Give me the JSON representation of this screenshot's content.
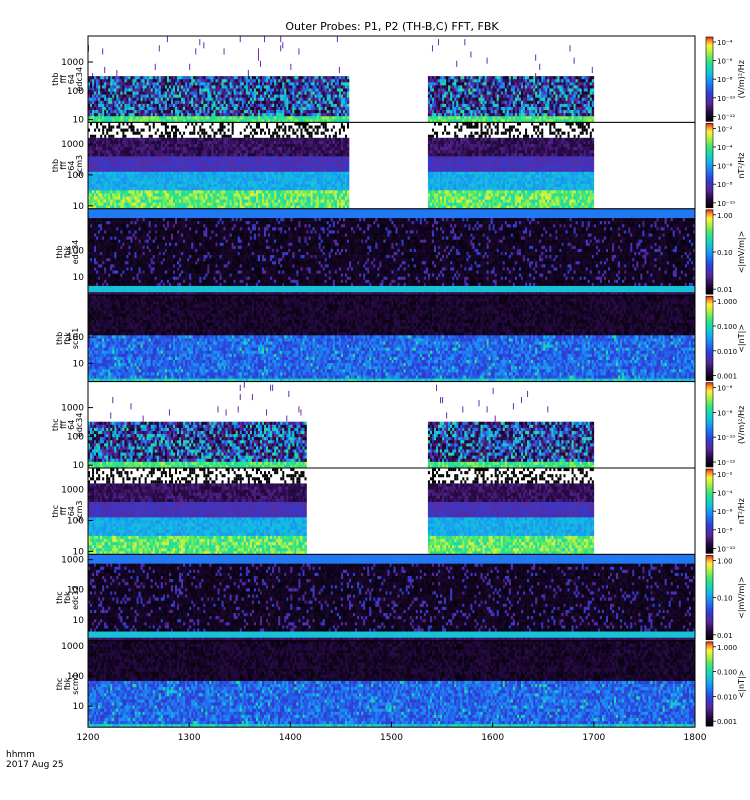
{
  "chart_data": {
    "type": "heatmap",
    "title": "Outer Probes: P1, P2 (TH-B,C) FFT, FBK",
    "footer": {
      "time_label": "hhmm",
      "date_label": "2017 Aug 25"
    },
    "x_axis": {
      "range": [
        1200,
        1800
      ],
      "ticks": [
        "1200",
        "1300",
        "1400",
        "1500",
        "1600",
        "1700",
        "1800"
      ]
    },
    "panels": [
      {
        "label": [
          "thb",
          "fff",
          "64",
          "edc34"
        ],
        "y_ticks": [
          "1000",
          "100",
          "10"
        ],
        "y_log_range": [
          8,
          8000
        ],
        "cbar_unit": "(V/m)²/Hz",
        "cbar_ticks": [
          "10⁻⁴",
          "10⁻⁶",
          "10⁻⁸",
          "10⁻¹⁰",
          "10⁻¹²"
        ],
        "cbar_kind": "exp",
        "gaps": [
          [
            1458,
            1537
          ],
          [
            1700,
            1800
          ]
        ],
        "style": "fff_e"
      },
      {
        "label": [
          "thb",
          "fff",
          "64",
          "scm3"
        ],
        "y_ticks": [
          "1000",
          "100",
          "10"
        ],
        "y_log_range": [
          8,
          5000
        ],
        "cbar_unit": "nT²/Hz",
        "cbar_ticks": [
          "10⁻²",
          "10⁻⁴",
          "10⁻⁶",
          "10⁻⁸",
          "10⁻¹⁰"
        ],
        "cbar_kind": "exp",
        "gaps": [
          [
            1458,
            1537
          ],
          [
            1700,
            1800
          ]
        ],
        "style": "fff_b"
      },
      {
        "label": [
          "thb",
          "fbk",
          "edc34"
        ],
        "y_ticks": [
          "100",
          "10"
        ],
        "y_log_range": [
          2,
          4000
        ],
        "cbar_unit": "<|mV/m|>",
        "cbar_ticks": [
          "1.00",
          "0.10",
          "0.01"
        ],
        "cbar_kind": "lin",
        "gaps": [],
        "style": "fbk_e"
      },
      {
        "label": [
          "thb",
          "fbk",
          "scm1"
        ],
        "y_ticks": [
          "100",
          "10"
        ],
        "y_log_range": [
          2,
          4000
        ],
        "cbar_unit": "<|nT|>",
        "cbar_ticks": [
          "1.000",
          "0.100",
          "0.010",
          "0.001"
        ],
        "cbar_kind": "lin",
        "gaps": [],
        "style": "fbk_b"
      },
      {
        "label": [
          "thc",
          "fff",
          "64",
          "edc34"
        ],
        "y_ticks": [
          "1000",
          "100",
          "10"
        ],
        "y_log_range": [
          8,
          8000
        ],
        "cbar_unit": "(V/m)²/Hz",
        "cbar_ticks": [
          "10⁻⁶",
          "10⁻⁸",
          "10⁻¹⁰",
          "10⁻¹²"
        ],
        "cbar_kind": "exp",
        "gaps": [
          [
            1417,
            1537
          ],
          [
            1700,
            1800
          ]
        ],
        "style": "fff_e"
      },
      {
        "label": [
          "thc",
          "fff",
          "64",
          "scm3"
        ],
        "y_ticks": [
          "1000",
          "100",
          "10"
        ],
        "y_log_range": [
          8,
          5000
        ],
        "cbar_unit": "nT²/Hz",
        "cbar_ticks": [
          "10⁻²",
          "10⁻⁴",
          "10⁻⁶",
          "10⁻⁸",
          "10⁻¹⁰"
        ],
        "cbar_kind": "exp",
        "gaps": [
          [
            1417,
            1537
          ],
          [
            1700,
            1800
          ]
        ],
        "style": "fff_b"
      },
      {
        "label": [
          "thc",
          "fbk",
          "edc12"
        ],
        "y_ticks": [
          "1000",
          "100",
          "10"
        ],
        "y_log_range": [
          2,
          1500
        ],
        "cbar_unit": "<|mV/m|>",
        "cbar_ticks": [
          "1.00",
          "0.10",
          "0.01"
        ],
        "cbar_kind": "lin",
        "gaps": [],
        "style": "fbk_e"
      },
      {
        "label": [
          "thc",
          "fbk",
          "scm1"
        ],
        "y_ticks": [
          "1000",
          "100",
          "10"
        ],
        "y_log_range": [
          2,
          1500
        ],
        "cbar_unit": "<|nT|>",
        "cbar_ticks": [
          "1.000",
          "0.100",
          "0.010",
          "0.001"
        ],
        "cbar_kind": "lin",
        "gaps": [],
        "style": "fbk_b"
      }
    ]
  }
}
